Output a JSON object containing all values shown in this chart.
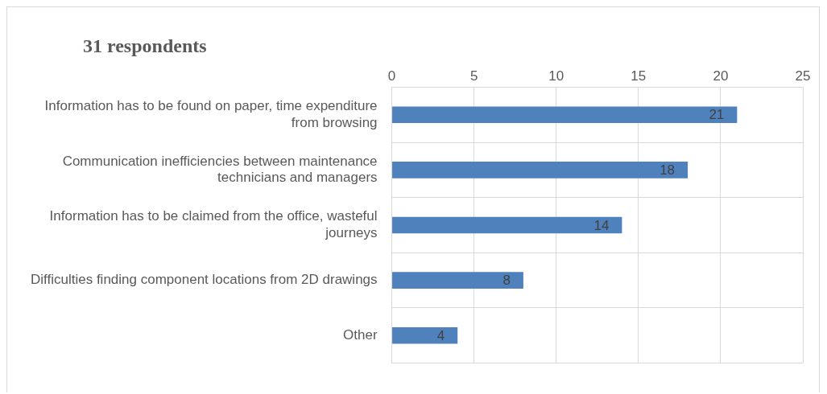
{
  "chart_data": {
    "type": "bar",
    "orientation": "horizontal",
    "title": "31 respondents",
    "categories": [
      "Information has to be found on paper, time expenditure from browsing",
      "Communication inefficiencies between maintenance technicians and managers",
      "Information has to be claimed from the office, wasteful journeys",
      "Difficulties finding component locations from 2D drawings",
      "Other"
    ],
    "values": [
      21,
      18,
      14,
      8,
      4
    ],
    "color": "#4f81bd",
    "xlim": [
      0,
      25
    ],
    "xticks": [
      0,
      5,
      10,
      15,
      20,
      25
    ],
    "grid": true,
    "data_labels": true
  }
}
